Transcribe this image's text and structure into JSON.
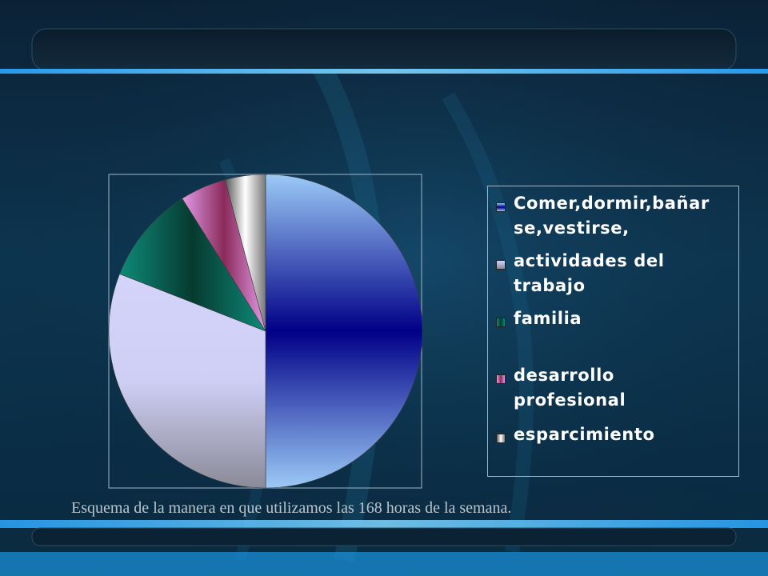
{
  "caption": "Esquema de la manera en que utilizamos las 168 horas de la semana.",
  "chart_data": {
    "type": "pie",
    "title": "",
    "labels": [
      "Comer,dormir,bañarse,vestirse,",
      "actividades del trabajo",
      "familia",
      "desarrollo profesional",
      "esparcimiento"
    ],
    "legend_text": [
      "Comer,dormir,bañar\nse,vestirse,",
      "actividades del\ntrabajo",
      "familia",
      "desarrollo\nprofesional",
      "esparcimiento"
    ],
    "values": [
      84,
      52,
      17,
      8,
      7
    ],
    "colors": [
      "#1a2fa8",
      "#b9b9dc",
      "#0b7a6a",
      "#b0509a",
      "#e9e9e9"
    ],
    "legend_position": "right"
  }
}
